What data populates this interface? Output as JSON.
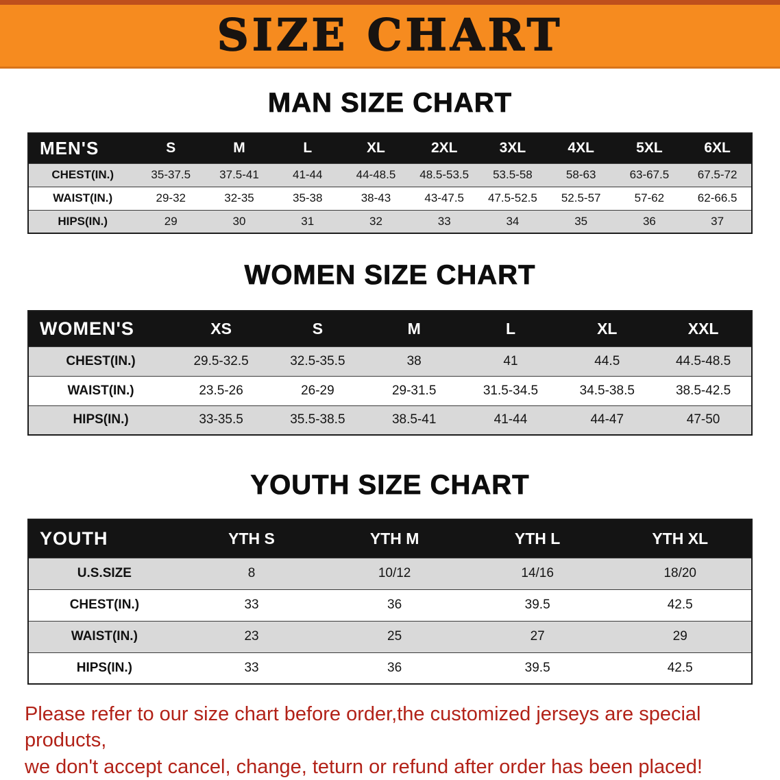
{
  "banner": {
    "title": "SIZE CHART",
    "bg_color": "#f68b1f",
    "text_color": "#181310"
  },
  "colors": {
    "table_header_bg": "#141414",
    "table_header_text": "#ffffff",
    "shaded_row_bg": "#d9d9d9",
    "notice_text": "#b22218"
  },
  "sections": [
    {
      "heading": "MAN SIZE CHART",
      "table": {
        "header_label": "MEN'S",
        "columns": [
          "S",
          "M",
          "L",
          "XL",
          "2XL",
          "3XL",
          "4XL",
          "5XL",
          "6XL"
        ],
        "rows": [
          {
            "label": "CHEST(IN.)",
            "values": [
              "35-37.5",
              "37.5-41",
              "41-44",
              "44-48.5",
              "48.5-53.5",
              "53.5-58",
              "58-63",
              "63-67.5",
              "67.5-72"
            ]
          },
          {
            "label": "WAIST(IN.)",
            "values": [
              "29-32",
              "32-35",
              "35-38",
              "38-43",
              "43-47.5",
              "47.5-52.5",
              "52.5-57",
              "57-62",
              "62-66.5"
            ]
          },
          {
            "label": "HIPS(IN.)",
            "values": [
              "29",
              "30",
              "31",
              "32",
              "33",
              "34",
              "35",
              "36",
              "37"
            ]
          }
        ]
      }
    },
    {
      "heading": "WOMEN SIZE CHART",
      "table": {
        "header_label": "WOMEN'S",
        "columns": [
          "XS",
          "S",
          "M",
          "L",
          "XL",
          "XXL"
        ],
        "rows": [
          {
            "label": "CHEST(IN.)",
            "values": [
              "29.5-32.5",
              "32.5-35.5",
              "38",
              "41",
              "44.5",
              "44.5-48.5"
            ]
          },
          {
            "label": "WAIST(IN.)",
            "values": [
              "23.5-26",
              "26-29",
              "29-31.5",
              "31.5-34.5",
              "34.5-38.5",
              "38.5-42.5"
            ]
          },
          {
            "label": "HIPS(IN.)",
            "values": [
              "33-35.5",
              "35.5-38.5",
              "38.5-41",
              "41-44",
              "44-47",
              "47-50"
            ]
          }
        ]
      }
    },
    {
      "heading": "YOUTH SIZE CHART",
      "table": {
        "header_label": "YOUTH",
        "columns": [
          "YTH S",
          "YTH M",
          "YTH L",
          "YTH XL"
        ],
        "rows": [
          {
            "label": "U.S.SIZE",
            "values": [
              "8",
              "10/12",
              "14/16",
              "18/20"
            ]
          },
          {
            "label": "CHEST(IN.)",
            "values": [
              "33",
              "36",
              "39.5",
              "42.5"
            ]
          },
          {
            "label": "WAIST(IN.)",
            "values": [
              "23",
              "25",
              "27",
              "29"
            ]
          },
          {
            "label": "HIPS(IN.)",
            "values": [
              "33",
              "36",
              "39.5",
              "42.5"
            ]
          }
        ]
      }
    }
  ],
  "footer": {
    "line1": "Please refer to our size chart before order,the customized jerseys are special products,",
    "line2": "we don't accept cancel, change, teturn or refund after order has been placed!"
  }
}
